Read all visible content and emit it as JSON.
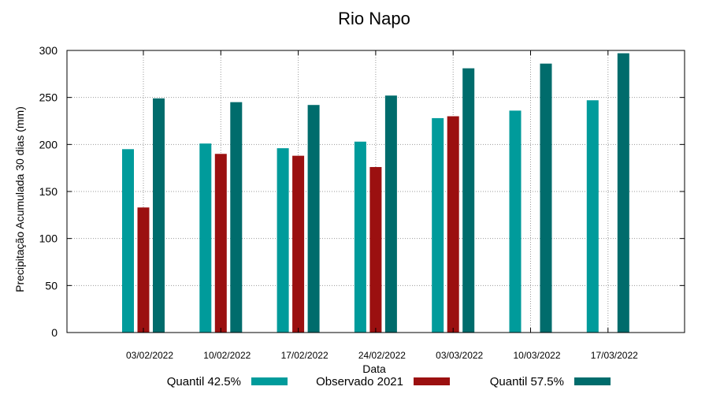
{
  "chart_data": {
    "type": "bar",
    "title": "Rio Napo",
    "xlabel": "Data",
    "ylabel": "Precipitação Acumulada 30 dias (mm)",
    "ylim": [
      0,
      300
    ],
    "yticks": [
      0,
      50,
      100,
      150,
      200,
      250,
      300
    ],
    "grid": true,
    "legend_position": "bottom",
    "categories": [
      "03/02/2022",
      "10/02/2022",
      "17/02/2022",
      "24/02/2022",
      "03/03/2022",
      "10/03/2022",
      "17/03/2022"
    ],
    "series": [
      {
        "name": "Quantil 42.5%",
        "color": "#009b9b",
        "values": [
          195,
          201,
          196,
          203,
          228,
          236,
          247
        ]
      },
      {
        "name": "Observado 2021",
        "color": "#9b1010",
        "values": [
          133,
          190,
          188,
          176,
          230,
          null,
          null
        ]
      },
      {
        "name": "Quantil 57.5%",
        "color": "#006c6c",
        "values": [
          249,
          245,
          242,
          252,
          281,
          286,
          297
        ]
      }
    ]
  }
}
